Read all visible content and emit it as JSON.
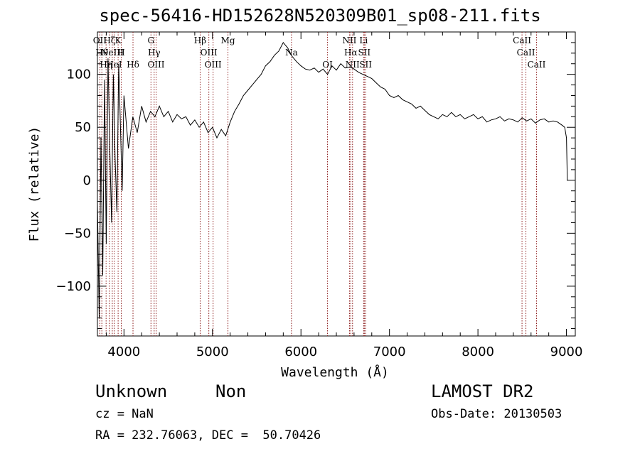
{
  "header": {
    "title": "spec-56416-HD152628N520309B01_sp08-211.fits"
  },
  "info": {
    "object_type": "Unknown",
    "object_subtype": "Non",
    "survey": "LAMOST DR2",
    "cz": "cz = NaN",
    "obs_date": "Obs-Date: 20130503",
    "radec": "RA = 232.76063, DEC =  50.70426"
  },
  "chart_data": {
    "type": "line",
    "title": "spec-56416-HD152628N520309B01_sp08-211.fits",
    "xlabel": "Wavelength (Å)",
    "ylabel": "Flux (relative)",
    "xlim": [
      3700,
      9100
    ],
    "ylim": [
      -147,
      140
    ],
    "xticks": [
      4000,
      5000,
      6000,
      7000,
      8000,
      9000
    ],
    "yticks": [
      -100,
      -50,
      0,
      50,
      100
    ],
    "line_color": "#000000",
    "marker_color": "#8b1a1a",
    "series": [
      {
        "x": [
          3700,
          3720,
          3740,
          3760,
          3780,
          3800,
          3820,
          3840,
          3860,
          3880,
          3900,
          3920,
          3940,
          3960,
          3980,
          4000,
          4050,
          4100,
          4150,
          4200,
          4250,
          4300,
          4350,
          4400,
          4450,
          4500,
          4550,
          4600,
          4650,
          4700,
          4750,
          4800,
          4850,
          4900,
          4950,
          5000,
          5050,
          5100,
          5150,
          5200,
          5250,
          5300,
          5350,
          5400,
          5450,
          5500,
          5550,
          5600,
          5650,
          5700,
          5750,
          5800,
          5820,
          5850,
          5880,
          5900,
          5950,
          6000,
          6050,
          6100,
          6150,
          6200,
          6250,
          6300,
          6350,
          6400,
          6450,
          6500,
          6550,
          6600,
          6650,
          6700,
          6750,
          6800,
          6850,
          6900,
          6950,
          7000,
          7050,
          7100,
          7150,
          7200,
          7250,
          7300,
          7350,
          7400,
          7450,
          7500,
          7550,
          7600,
          7650,
          7700,
          7750,
          7800,
          7850,
          7900,
          7950,
          8000,
          8050,
          8100,
          8150,
          8200,
          8250,
          8300,
          8350,
          8400,
          8450,
          8500,
          8550,
          8600,
          8650,
          8700,
          8750,
          8800,
          8850,
          8900,
          8950,
          8980,
          9000,
          9010
        ],
        "y": [
          -20,
          -130,
          40,
          -90,
          95,
          -60,
          115,
          30,
          -40,
          100,
          20,
          -30,
          110,
          50,
          -10,
          80,
          30,
          60,
          45,
          70,
          55,
          65,
          60,
          70,
          60,
          65,
          55,
          62,
          58,
          60,
          52,
          57,
          50,
          55,
          45,
          50,
          40,
          48,
          42,
          55,
          65,
          72,
          80,
          85,
          90,
          95,
          100,
          108,
          112,
          118,
          122,
          130,
          128,
          125,
          120,
          117,
          112,
          108,
          105,
          104,
          106,
          102,
          105,
          100,
          108,
          104,
          110,
          106,
          107,
          105,
          102,
          100,
          98,
          96,
          92,
          88,
          86,
          80,
          78,
          80,
          76,
          74,
          72,
          68,
          70,
          66,
          62,
          60,
          58,
          62,
          60,
          64,
          60,
          62,
          58,
          60,
          62,
          58,
          60,
          55,
          57,
          58,
          60,
          56,
          58,
          57,
          55,
          59,
          56,
          58,
          54,
          57,
          58,
          55,
          56,
          55,
          52,
          50,
          40,
          0
        ]
      }
    ],
    "lines": [
      {
        "x": 3727,
        "label": "OII"
      },
      {
        "x": 3750,
        "label": "Hθ"
      },
      {
        "x": 3798,
        "label": "Hη"
      },
      {
        "x": 3835,
        "label": "Hζ"
      },
      {
        "x": 3868,
        "label": "NeIII"
      },
      {
        "x": 3889,
        "label": "HeI"
      },
      {
        "x": 3934,
        "label": "K"
      },
      {
        "x": 3969,
        "label": "H"
      },
      {
        "x": 4102,
        "label": "Hδ"
      },
      {
        "x": 4305,
        "label": "G"
      },
      {
        "x": 4341,
        "label": "Hγ"
      },
      {
        "x": 4363,
        "label": "OIII"
      },
      {
        "x": 4861,
        "label": "Hβ"
      },
      {
        "x": 4959,
        "label": "OIII"
      },
      {
        "x": 5007,
        "label": "OIII"
      },
      {
        "x": 5175,
        "label": "Mg"
      },
      {
        "x": 5893,
        "label": "Na"
      },
      {
        "x": 6300,
        "label": "OI"
      },
      {
        "x": 6548,
        "label": "NII"
      },
      {
        "x": 6563,
        "label": "Hα"
      },
      {
        "x": 6583,
        "label": "NII"
      },
      {
        "x": 6708,
        "label": "Li"
      },
      {
        "x": 6716,
        "label": "SII"
      },
      {
        "x": 6731,
        "label": "SII"
      },
      {
        "x": 8498,
        "label": "CaII"
      },
      {
        "x": 8542,
        "label": "CaII"
      },
      {
        "x": 8662,
        "label": "CaII"
      }
    ]
  }
}
